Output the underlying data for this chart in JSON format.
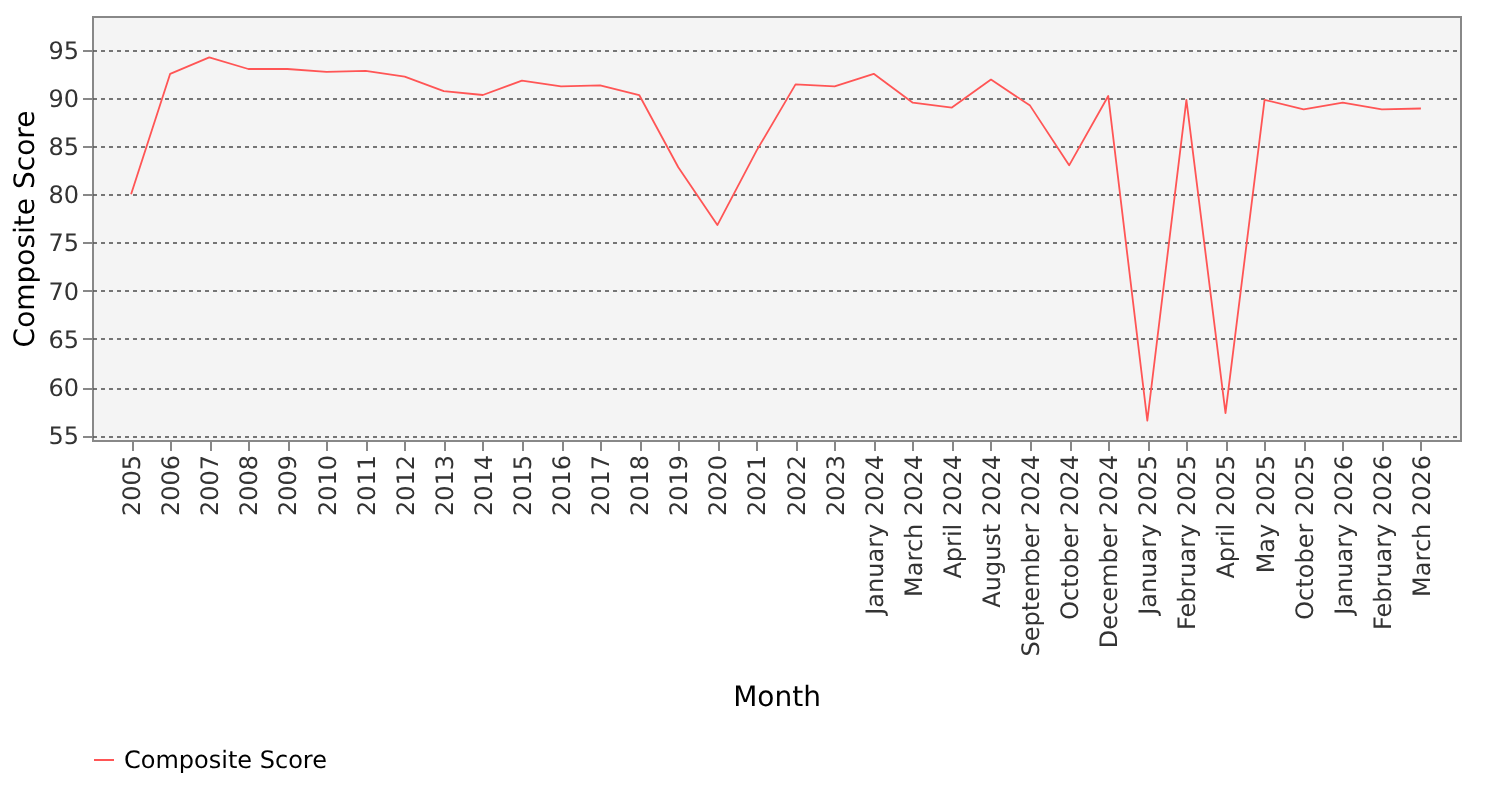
{
  "chart_data": {
    "type": "line",
    "xlabel": "Month",
    "ylabel": "Composite Score",
    "categories": [
      "2005",
      "2006",
      "2007",
      "2008",
      "2009",
      "2010",
      "2011",
      "2012",
      "2013",
      "2014",
      "2015",
      "2016",
      "2017",
      "2018",
      "2019",
      "2020",
      "2021",
      "2022",
      "2023",
      "January 2024",
      "March 2024",
      "April 2024",
      "August 2024",
      "September 2024",
      "October 2024",
      "December 2024",
      "January 2025",
      "February 2025",
      "April 2025",
      "May 2025",
      "October 2025",
      "January 2026",
      "February 2026",
      "March 2026"
    ],
    "series": [
      {
        "name": "Composite Score",
        "color": "#ff5555",
        "values": [
          80,
          92.5,
          94.2,
          93,
          93,
          92.7,
          92.8,
          92.2,
          90.7,
          90.3,
          91.8,
          91.2,
          91.3,
          90.3,
          82.8,
          76.8,
          84.5,
          91.4,
          91.2,
          92.5,
          89.5,
          89,
          91.9,
          89.2,
          83,
          90.2,
          56.5,
          89.8,
          57.3,
          89.8,
          88.8,
          89.5,
          88.8,
          88.9
        ]
      }
    ],
    "ylim": [
      54.5,
      98.5
    ],
    "yticks": [
      55,
      60,
      65,
      70,
      75,
      80,
      85,
      90,
      95
    ],
    "grid": "y",
    "legend": "bottom",
    "marker": "none",
    "line_style": "solid"
  }
}
